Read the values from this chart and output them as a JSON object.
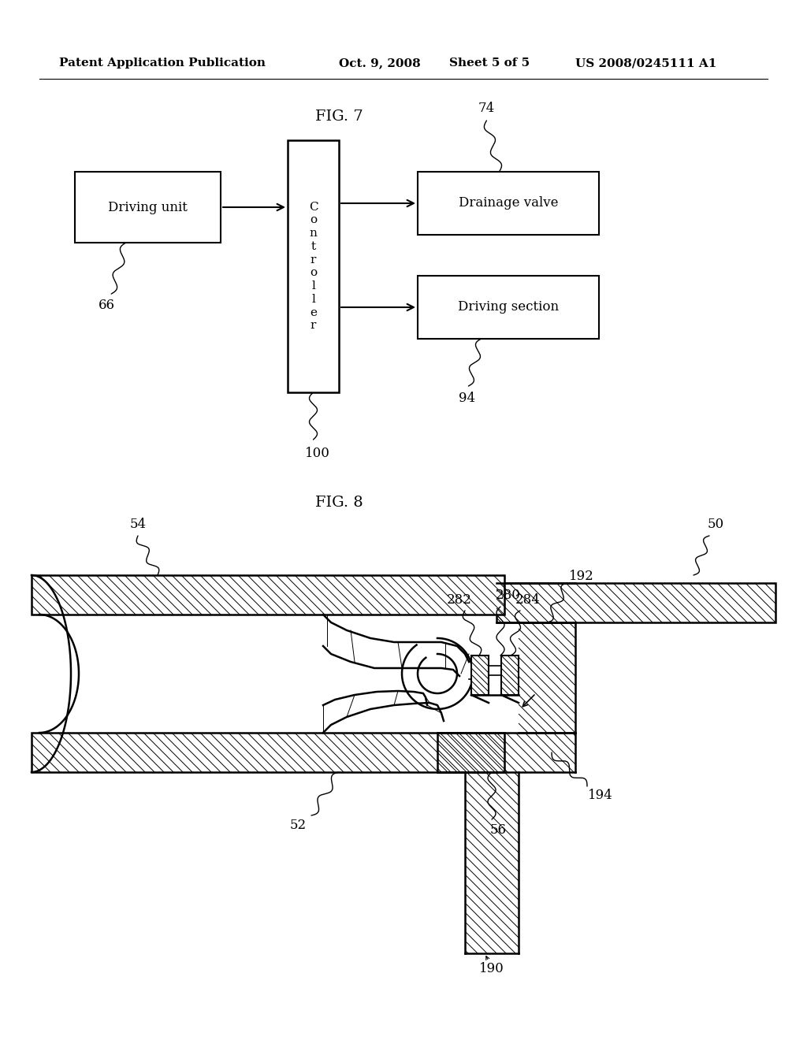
{
  "background_color": "#ffffff",
  "header_text": "Patent Application Publication",
  "header_date": "Oct. 9, 2008",
  "header_sheet": "Sheet 5 of 5",
  "header_patent": "US 2008/0245111 A1",
  "fig7_title": "FIG. 7",
  "fig8_title": "FIG. 8"
}
